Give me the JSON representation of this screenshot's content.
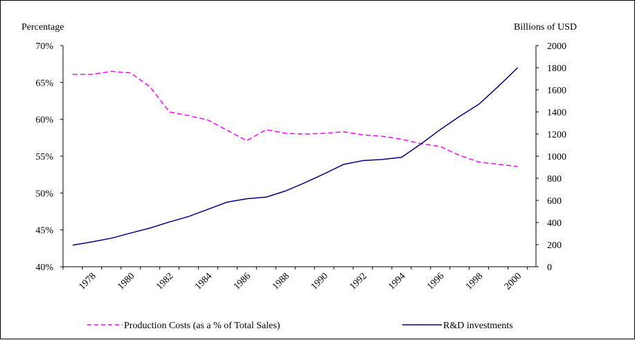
{
  "chart_data": {
    "type": "line",
    "left_axis_label": "Percentage",
    "right_axis_label": "Billions of USD",
    "left_ylim": [
      0.4,
      0.7
    ],
    "right_ylim": [
      0,
      2000
    ],
    "left_ticks": [
      "40%",
      "45%",
      "50%",
      "55%",
      "60%",
      "65%",
      "70%"
    ],
    "right_ticks": [
      "0",
      "200",
      "400",
      "600",
      "800",
      "1000",
      "1200",
      "1400",
      "1600",
      "1800",
      "2000"
    ],
    "x": [
      1977,
      1978,
      1979,
      1980,
      1981,
      1982,
      1983,
      1984,
      1985,
      1986,
      1987,
      1988,
      1989,
      1990,
      1991,
      1992,
      1993,
      1994,
      1995,
      1996,
      1997,
      1998,
      1999,
      2000
    ],
    "x_tick_labels": [
      "1978",
      "1980",
      "1982",
      "1984",
      "1986",
      "1988",
      "1990",
      "1992",
      "1994",
      "1996",
      "1998",
      "2000"
    ],
    "series": [
      {
        "name": "Production Costs (as a % of Total Sales)",
        "axis": "left",
        "color": "#ff00ff",
        "dash": "dashed",
        "values": [
          0.661,
          0.661,
          0.665,
          0.663,
          0.644,
          0.61,
          0.605,
          0.599,
          0.585,
          0.571,
          0.586,
          0.581,
          0.58,
          0.581,
          0.583,
          0.579,
          0.577,
          0.573,
          0.567,
          0.563,
          0.551,
          0.542,
          0.539,
          0.536
        ]
      },
      {
        "name": "R&D investments",
        "axis": "right",
        "color": "#000080",
        "dash": "solid",
        "values": [
          195,
          225,
          258,
          305,
          350,
          405,
          455,
          520,
          585,
          615,
          630,
          685,
          760,
          840,
          925,
          960,
          970,
          990,
          1110,
          1240,
          1360,
          1470,
          1630,
          1800
        ]
      }
    ]
  }
}
